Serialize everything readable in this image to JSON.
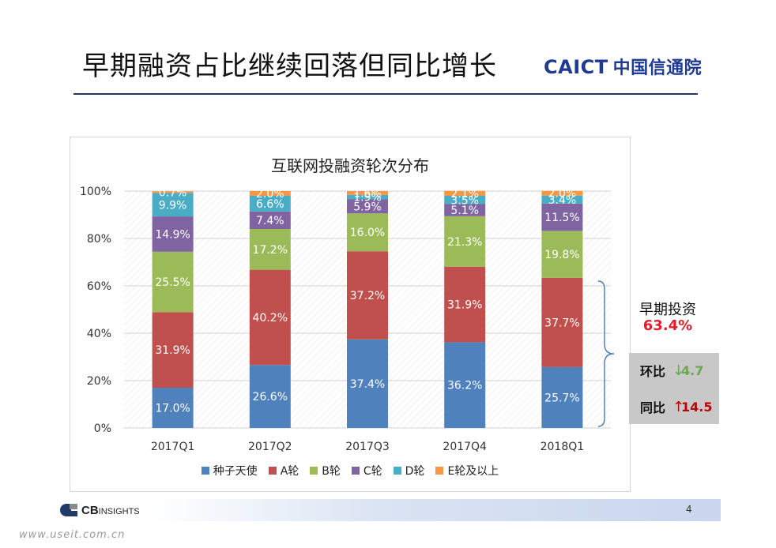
{
  "slide": {
    "title": "早期融资占比继续回落但同比增长",
    "logo_en": "CAICT",
    "logo_cn": "中国信通院",
    "page_number": "4",
    "footer_logo_main": "CB",
    "footer_logo_sub": "INSIGHTS",
    "source_url": "www.useit.com.cn",
    "watermark": "CAICT 中国信通院"
  },
  "chart_data": {
    "type": "bar",
    "stacked": true,
    "percent": true,
    "title": "互联网投融资轮次分布",
    "categories": [
      "2017Q1",
      "2017Q2",
      "2017Q3",
      "2017Q4",
      "2018Q1"
    ],
    "yticks": [
      "0%",
      "20%",
      "40%",
      "60%",
      "80%",
      "100%"
    ],
    "ylim": [
      0,
      100
    ],
    "grid": true,
    "legend_position": "bottom",
    "series": [
      {
        "name": "种子天使",
        "color": "#4f81bd",
        "values": [
          17.0,
          26.6,
          37.4,
          36.2,
          25.7
        ],
        "labels": [
          "17.0%",
          "26.6%",
          "37.4%",
          "36.2%",
          "25.7%"
        ]
      },
      {
        "name": "A轮",
        "color": "#c0504d",
        "values": [
          31.9,
          40.2,
          37.2,
          31.9,
          37.7
        ],
        "labels": [
          "31.9%",
          "40.2%",
          "37.2%",
          "31.9%",
          "37.7%"
        ]
      },
      {
        "name": "B轮",
        "color": "#9bbb59",
        "values": [
          25.5,
          17.2,
          16.0,
          21.3,
          19.8
        ],
        "labels": [
          "25.5%",
          "17.2%",
          "16.0%",
          "21.3%",
          "19.8%"
        ]
      },
      {
        "name": "C轮",
        "color": "#8064a2",
        "values": [
          14.9,
          7.4,
          5.9,
          5.1,
          11.5
        ],
        "labels": [
          "14.9%",
          "7.4%",
          "5.9%",
          "5.1%",
          "11.5%"
        ]
      },
      {
        "name": "D轮",
        "color": "#4bacc6",
        "values": [
          9.9,
          6.6,
          1.9,
          3.5,
          3.4
        ],
        "labels": [
          "9.9%",
          "6.6%",
          "1.9%",
          "3.5%",
          "3.4%"
        ]
      },
      {
        "name": "E轮及以上",
        "color": "#f79646",
        "values": [
          0.7,
          2.0,
          1.6,
          2.1,
          2.0
        ],
        "labels": [
          "0.7%",
          "2.0%",
          "1.6%",
          "2.1%",
          "2.0%"
        ]
      }
    ]
  },
  "callout": {
    "early_label": "早期投资",
    "early_value": "63.4%",
    "qoq_label": "环比",
    "qoq_value": "4.7",
    "qoq_color": "#6aa84f",
    "yoy_label": "同比",
    "yoy_value": "14.5",
    "yoy_color": "#c00000"
  }
}
